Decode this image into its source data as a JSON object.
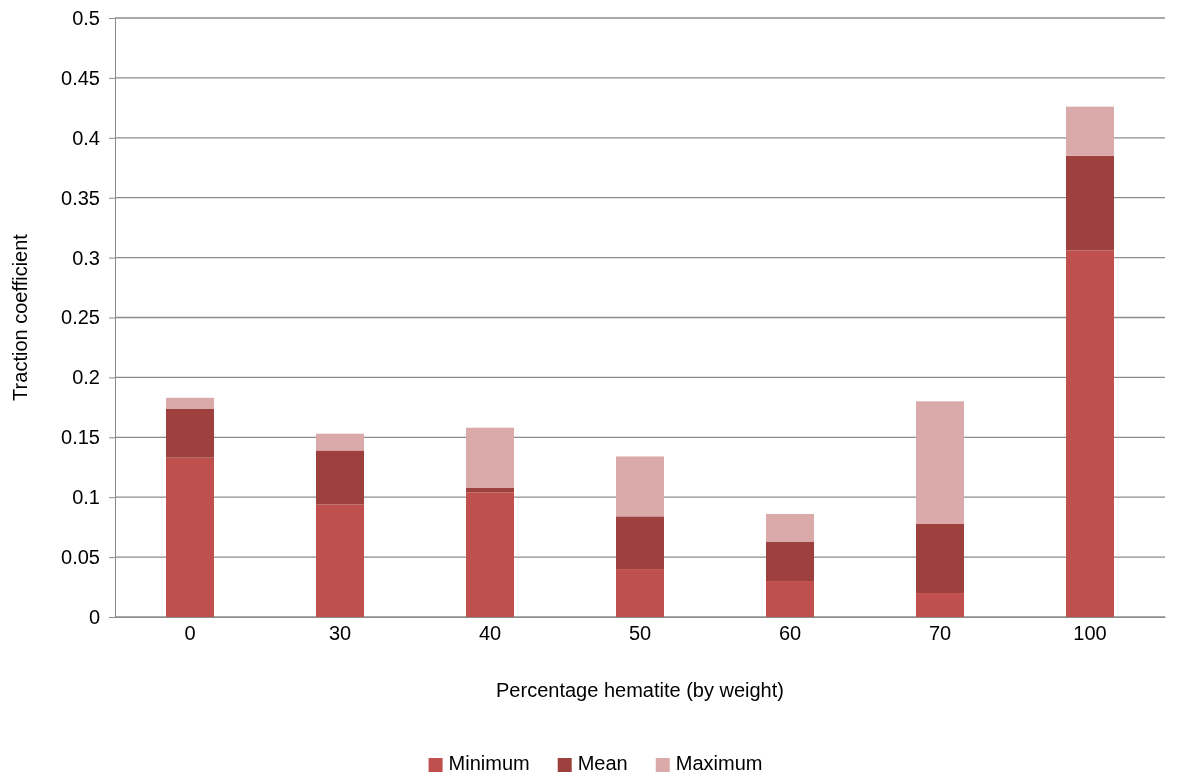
{
  "chart_data": {
    "type": "bar",
    "stacked": true,
    "xlabel": "Percentage hematite (by weight)",
    "ylabel": "Traction coefficient",
    "categories": [
      "0",
      "30",
      "40",
      "50",
      "60",
      "70",
      "100"
    ],
    "series": [
      {
        "name": "Minimum",
        "color": "#c0504d",
        "values": [
          0.133,
          0.094,
          0.104,
          0.04,
          0.03,
          0.02,
          0.306
        ]
      },
      {
        "name": "Mean",
        "color": "#9e403e",
        "values": [
          0.041,
          0.045,
          0.004,
          0.044,
          0.033,
          0.058,
          0.079
        ]
      },
      {
        "name": "Maximum",
        "color": "#d9aaa9",
        "values": [
          0.009,
          0.014,
          0.05,
          0.05,
          0.023,
          0.102,
          0.041
        ]
      }
    ],
    "ylim": [
      0,
      0.5
    ],
    "yticks": [
      0,
      0.05,
      0.1,
      0.15,
      0.2,
      0.25,
      0.3,
      0.35,
      0.4,
      0.45,
      0.5
    ],
    "grid": "y",
    "legend": "bottom"
  }
}
